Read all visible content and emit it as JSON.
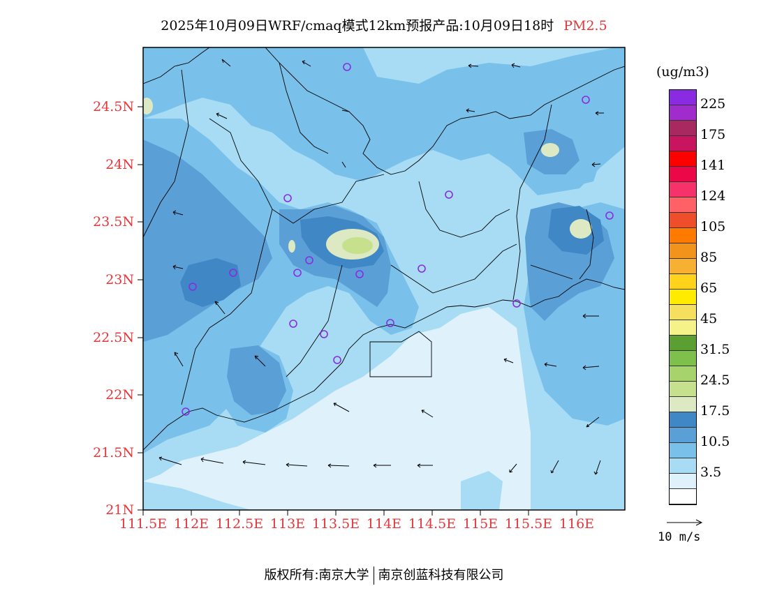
{
  "title": {
    "main": "2025年10月09日WRF/cmaq模式12km预报产品:10月09日18时",
    "species": "PM2.5"
  },
  "map": {
    "lat_labels": [
      "24.5N",
      "24N",
      "23.5N",
      "23N",
      "22.5N",
      "22N",
      "21.5N",
      "21N"
    ],
    "lon_labels": [
      "111.5E",
      "112E",
      "112.5E",
      "113E",
      "113.5E",
      "114E",
      "114.5E",
      "115E",
      "115.5E",
      "116E"
    ],
    "colors": {
      "axis": "#e8353a",
      "background": "#dff1fb"
    }
  },
  "legend": {
    "units": "(ug/m3)",
    "colors": [
      "#ffffff",
      "#dff1fb",
      "#a8dcf5",
      "#79c0ea",
      "#5a9fd6",
      "#3f87c5",
      "#dde9c3",
      "#c6e08e",
      "#a7d36c",
      "#7fbf4c",
      "#5b9e32",
      "#f6f28a",
      "#f5df5f",
      "#ffeb00",
      "#ffd21c",
      "#f7b032",
      "#f2941c",
      "#ff7a00",
      "#ee4e2a",
      "#ff6166",
      "#f5336a",
      "#ec0749",
      "#ff0000",
      "#c91460",
      "#a8295f",
      "#9f2ccb",
      "#8a2be2"
    ],
    "labels": [
      "3.5",
      "10.5",
      "17.5",
      "24.5",
      "31.5",
      "45",
      "65",
      "85",
      "105",
      "124",
      "141",
      "175",
      "225"
    ]
  },
  "vector_ref": {
    "label": "10 m/s"
  },
  "credit": {
    "left": "版权所有:南京大学",
    "right": "南京创蓝科技有限公司"
  }
}
